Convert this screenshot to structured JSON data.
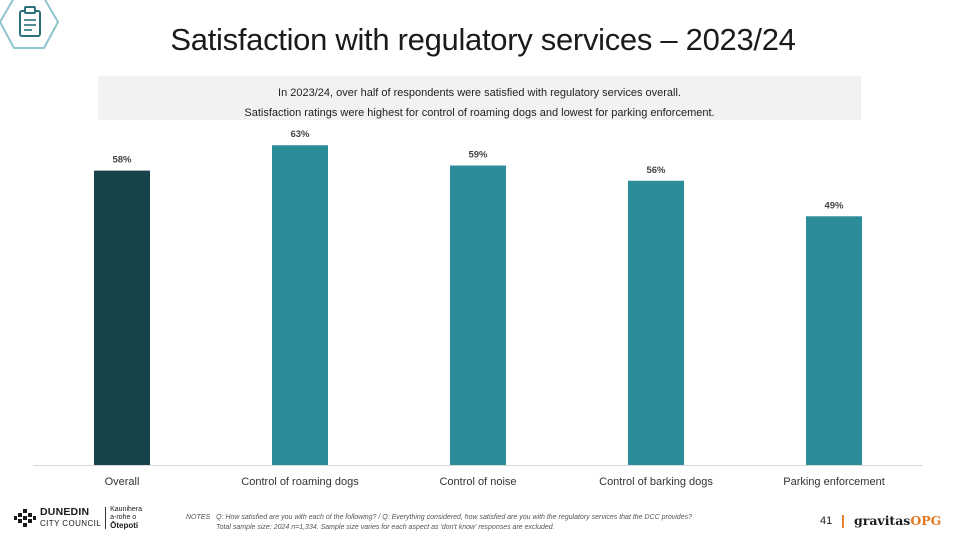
{
  "header": {
    "title": "Satisfaction with regulatory services – 2023/24",
    "icon": "clipboard-icon"
  },
  "summary": {
    "line1": "In 2023/24, over half of respondents were satisfied with regulatory services overall.",
    "line2": "Satisfaction ratings were highest for control of roaming dogs and lowest for parking enforcement."
  },
  "chart_data": {
    "type": "bar",
    "categories": [
      "Overall",
      "Control of roaming dogs",
      "Control of noise",
      "Control of barking dogs",
      "Parking enforcement"
    ],
    "values": [
      58,
      63,
      59,
      56,
      49
    ],
    "value_labels": [
      "58%",
      "63%",
      "59%",
      "56%",
      "49%"
    ],
    "title": "",
    "xlabel": "",
    "ylabel": "",
    "ylim": [
      0,
      66
    ],
    "colors": [
      "#17444a",
      "#2c8c99",
      "#2c8c99",
      "#2c8c99",
      "#2c8c99"
    ],
    "grid": false,
    "legend": "none"
  },
  "footer": {
    "org_name": "DUNEDIN",
    "org_sub": "CITY COUNCIL",
    "org_maori_1": "Kaunihera",
    "org_maori_2": "a-rohe o",
    "org_maori_3": "Ōtepoti",
    "notes_head": "NOTES",
    "notes_line1": "Q: How satisfied are you with each of the following?   /   Q: Everything considered, how satisfied are you with the regulatory services that the DCC provides?",
    "notes_line2": "Total sample size: 2024 n=1,334. Sample size varies  for each aspect as 'don't know' responses are excluded.",
    "page_number": "41",
    "brand_separator": "|",
    "brand_main": "gravitas",
    "brand_accent": "OPG"
  }
}
